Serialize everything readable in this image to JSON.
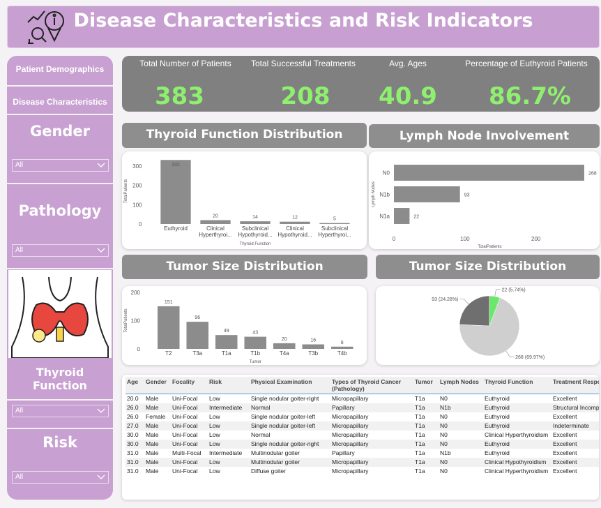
{
  "header": {
    "title": "Disease Characteristics and Risk Indicators"
  },
  "sidebar": {
    "tabs": [
      "Patient Demographics",
      "Disease Characteristics"
    ],
    "filters": [
      {
        "label": "Gender",
        "value": "All"
      },
      {
        "label": "Pathology",
        "value": "All"
      },
      {
        "label": "Thyroid Function",
        "value": "All"
      },
      {
        "label": "Risk",
        "value": "All"
      }
    ]
  },
  "kpis": [
    {
      "label": "Total Number of Patients",
      "value": "383"
    },
    {
      "label": "Total Successful Treatments",
      "value": "208"
    },
    {
      "label": "Avg. Ages",
      "value": "40.9"
    },
    {
      "label": "Percentage of Euthyroid Patients",
      "value": "86.7%"
    }
  ],
  "chart_data": [
    {
      "type": "bar",
      "title": "Thyroid Function Distribution",
      "x_label": "Thyroid Function",
      "y_label": "TotalPatients",
      "categories": [
        "Euthyroid",
        "Clinical Hyperthyroi...",
        "Subclinical Hypothyroid...",
        "Clinical Hypothyroid...",
        "Subclinical Hyperthyroi..."
      ],
      "values": [
        332,
        20,
        14,
        12,
        5
      ],
      "color": "#8c8c8c",
      "ylim": [
        0,
        340
      ],
      "yticks": [
        0,
        100,
        200,
        300
      ],
      "grid": false
    },
    {
      "type": "hbar",
      "title": "Lymph Node Involvement",
      "x_label": "TotalPatients",
      "y_label": "Lymph Nodes",
      "categories": [
        "N0",
        "N1b",
        "N1a"
      ],
      "values": [
        268,
        93,
        22
      ],
      "color": "#8c8c8c",
      "xlim": [
        0,
        270
      ],
      "xticks": [
        0,
        100,
        200
      ],
      "grid": false
    },
    {
      "type": "bar",
      "title": "Tumor Size Distribution",
      "x_label": "Tumor",
      "y_label": "TotalPatients",
      "categories": [
        "T2",
        "T3a",
        "T1a",
        "T1b",
        "T4a",
        "T3b",
        "T4b"
      ],
      "values": [
        151,
        96,
        49,
        43,
        20,
        16,
        8
      ],
      "color": "#8c8c8c",
      "ylim": [
        0,
        200
      ],
      "yticks": [
        0,
        100,
        200
      ],
      "grid": false
    },
    {
      "type": "pie",
      "title": "Tumor Size Distribution",
      "values": [
        268,
        93,
        22
      ],
      "value_labels": [
        "268 (69.97%)",
        "93 (24.28%)",
        "22 (5.74%)"
      ],
      "colors": [
        "#cfcfcf",
        "#6f6f6f",
        "#6be86b"
      ]
    }
  ],
  "table": {
    "columns": [
      "Age",
      "Gender",
      "Focality",
      "Risk",
      "Physical Examination",
      "Types of Thyroid Cancer (Pathology)",
      "Tumor",
      "Lymph Nodes",
      "Thyroid Function",
      "Treatment Response"
    ],
    "rows": [
      [
        "20.0",
        "Male",
        "Uni-Focal",
        "Low",
        "Single nodular goiter-right",
        "Micropapillary",
        "T1a",
        "N0",
        "Euthyroid",
        "Excellent"
      ],
      [
        "26.0",
        "Male",
        "Uni-Focal",
        "Intermediate",
        "Normal",
        "Papillary",
        "T1a",
        "N1b",
        "Euthyroid",
        "Structural Incomplete"
      ],
      [
        "26.0",
        "Female",
        "Uni-Focal",
        "Low",
        "Single nodular goiter-left",
        "Micropapillary",
        "T1a",
        "N0",
        "Euthyroid",
        "Excellent"
      ],
      [
        "27.0",
        "Male",
        "Uni-Focal",
        "Low",
        "Single nodular goiter-left",
        "Micropapillary",
        "T1a",
        "N0",
        "Euthyroid",
        "Indeterminate"
      ],
      [
        "30.0",
        "Male",
        "Uni-Focal",
        "Low",
        "Normal",
        "Micropapillary",
        "T1a",
        "N0",
        "Clinical Hyperthyroidism",
        "Excellent"
      ],
      [
        "30.0",
        "Male",
        "Uni-Focal",
        "Low",
        "Single nodular goiter-right",
        "Micropapillary",
        "T1a",
        "N0",
        "Euthyroid",
        "Excellent"
      ],
      [
        "31.0",
        "Male",
        "Multi-Focal",
        "Intermediate",
        "Multinodular goiter",
        "Papillary",
        "T1a",
        "N1b",
        "Euthyroid",
        "Excellent"
      ],
      [
        "31.0",
        "Male",
        "Uni-Focal",
        "Low",
        "Multinodular goiter",
        "Micropapillary",
        "T1a",
        "N0",
        "Clinical Hypothyroidism",
        "Excellent"
      ],
      [
        "31.0",
        "Male",
        "Uni-Focal",
        "Low",
        "Diffuse goiter",
        "Micropapillary",
        "T1a",
        "N0",
        "Clinical Hyperthyroidism",
        "Excellent"
      ]
    ]
  }
}
